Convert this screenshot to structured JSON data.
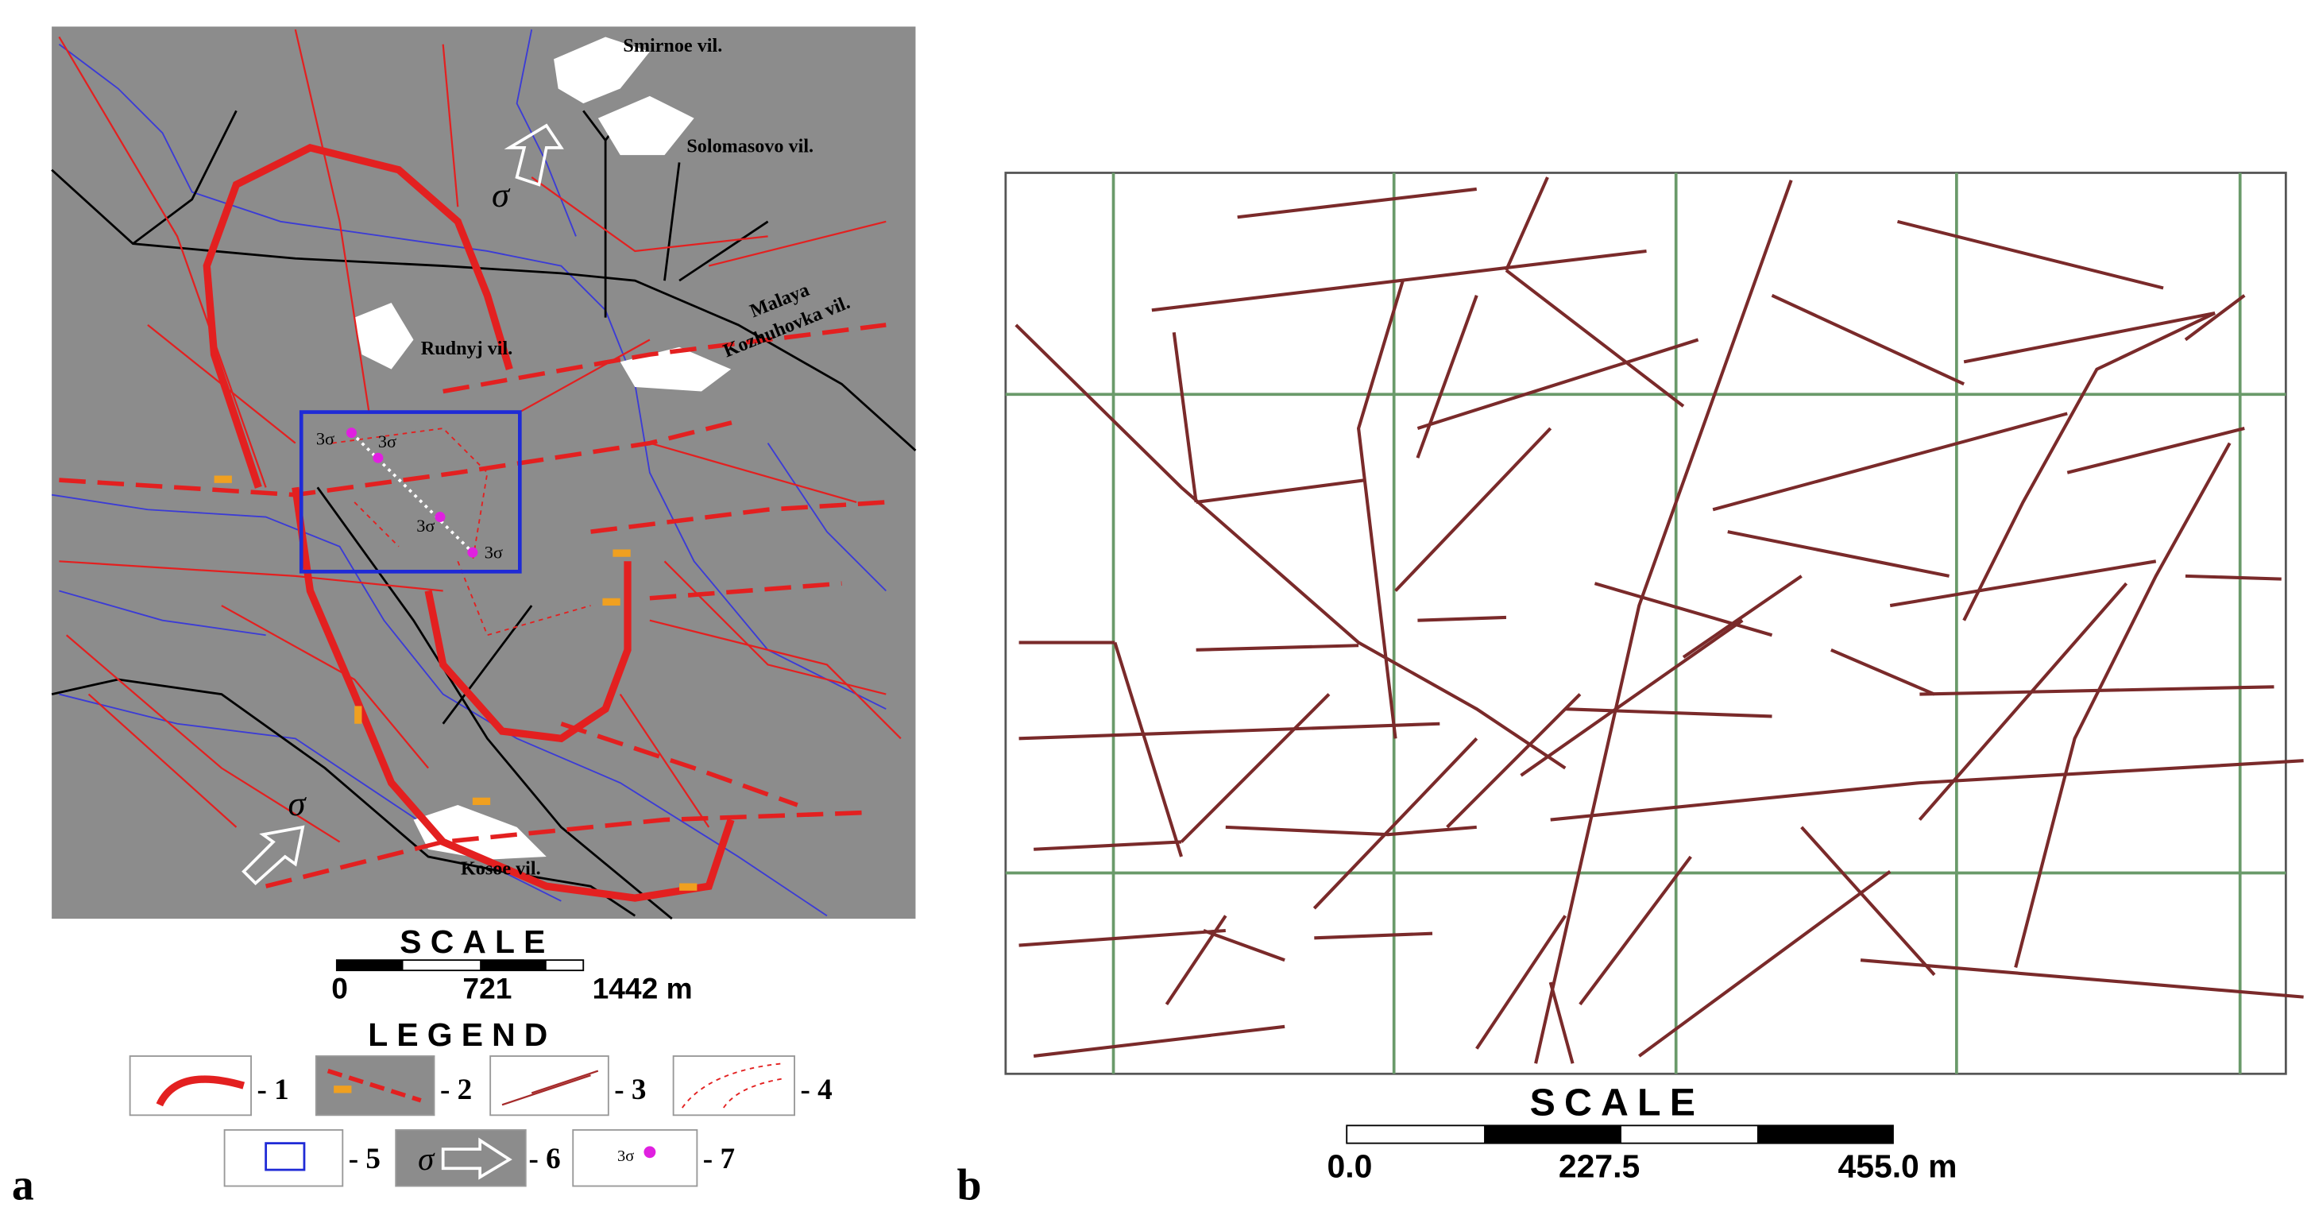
{
  "panel_a": {
    "label": "a",
    "places": [
      "Smirnoe vil.",
      "Solomasovo vil.",
      "Rudnyj vil.",
      "Malaya",
      "Kozhuhovka vil.",
      "Kosoe vil."
    ],
    "stress_symbols": [
      "σ",
      "σ"
    ],
    "points": [
      "3σ",
      "3σ",
      "3σ",
      "3σ"
    ],
    "scale": {
      "title": "SCALE",
      "labels": [
        "0",
        "721",
        "1442 m"
      ]
    },
    "legend": {
      "title": "LEGEND",
      "items": [
        "- 1",
        "- 2",
        "- 3",
        "- 4",
        "- 5",
        "- 6",
        "- 7"
      ],
      "symbol_6": "σ",
      "symbol_7": "3σ"
    }
  },
  "panel_b": {
    "label": "b",
    "scale": {
      "title": "SCALE",
      "labels": [
        "0.0",
        "227.5",
        "455.0 m"
      ]
    }
  }
}
